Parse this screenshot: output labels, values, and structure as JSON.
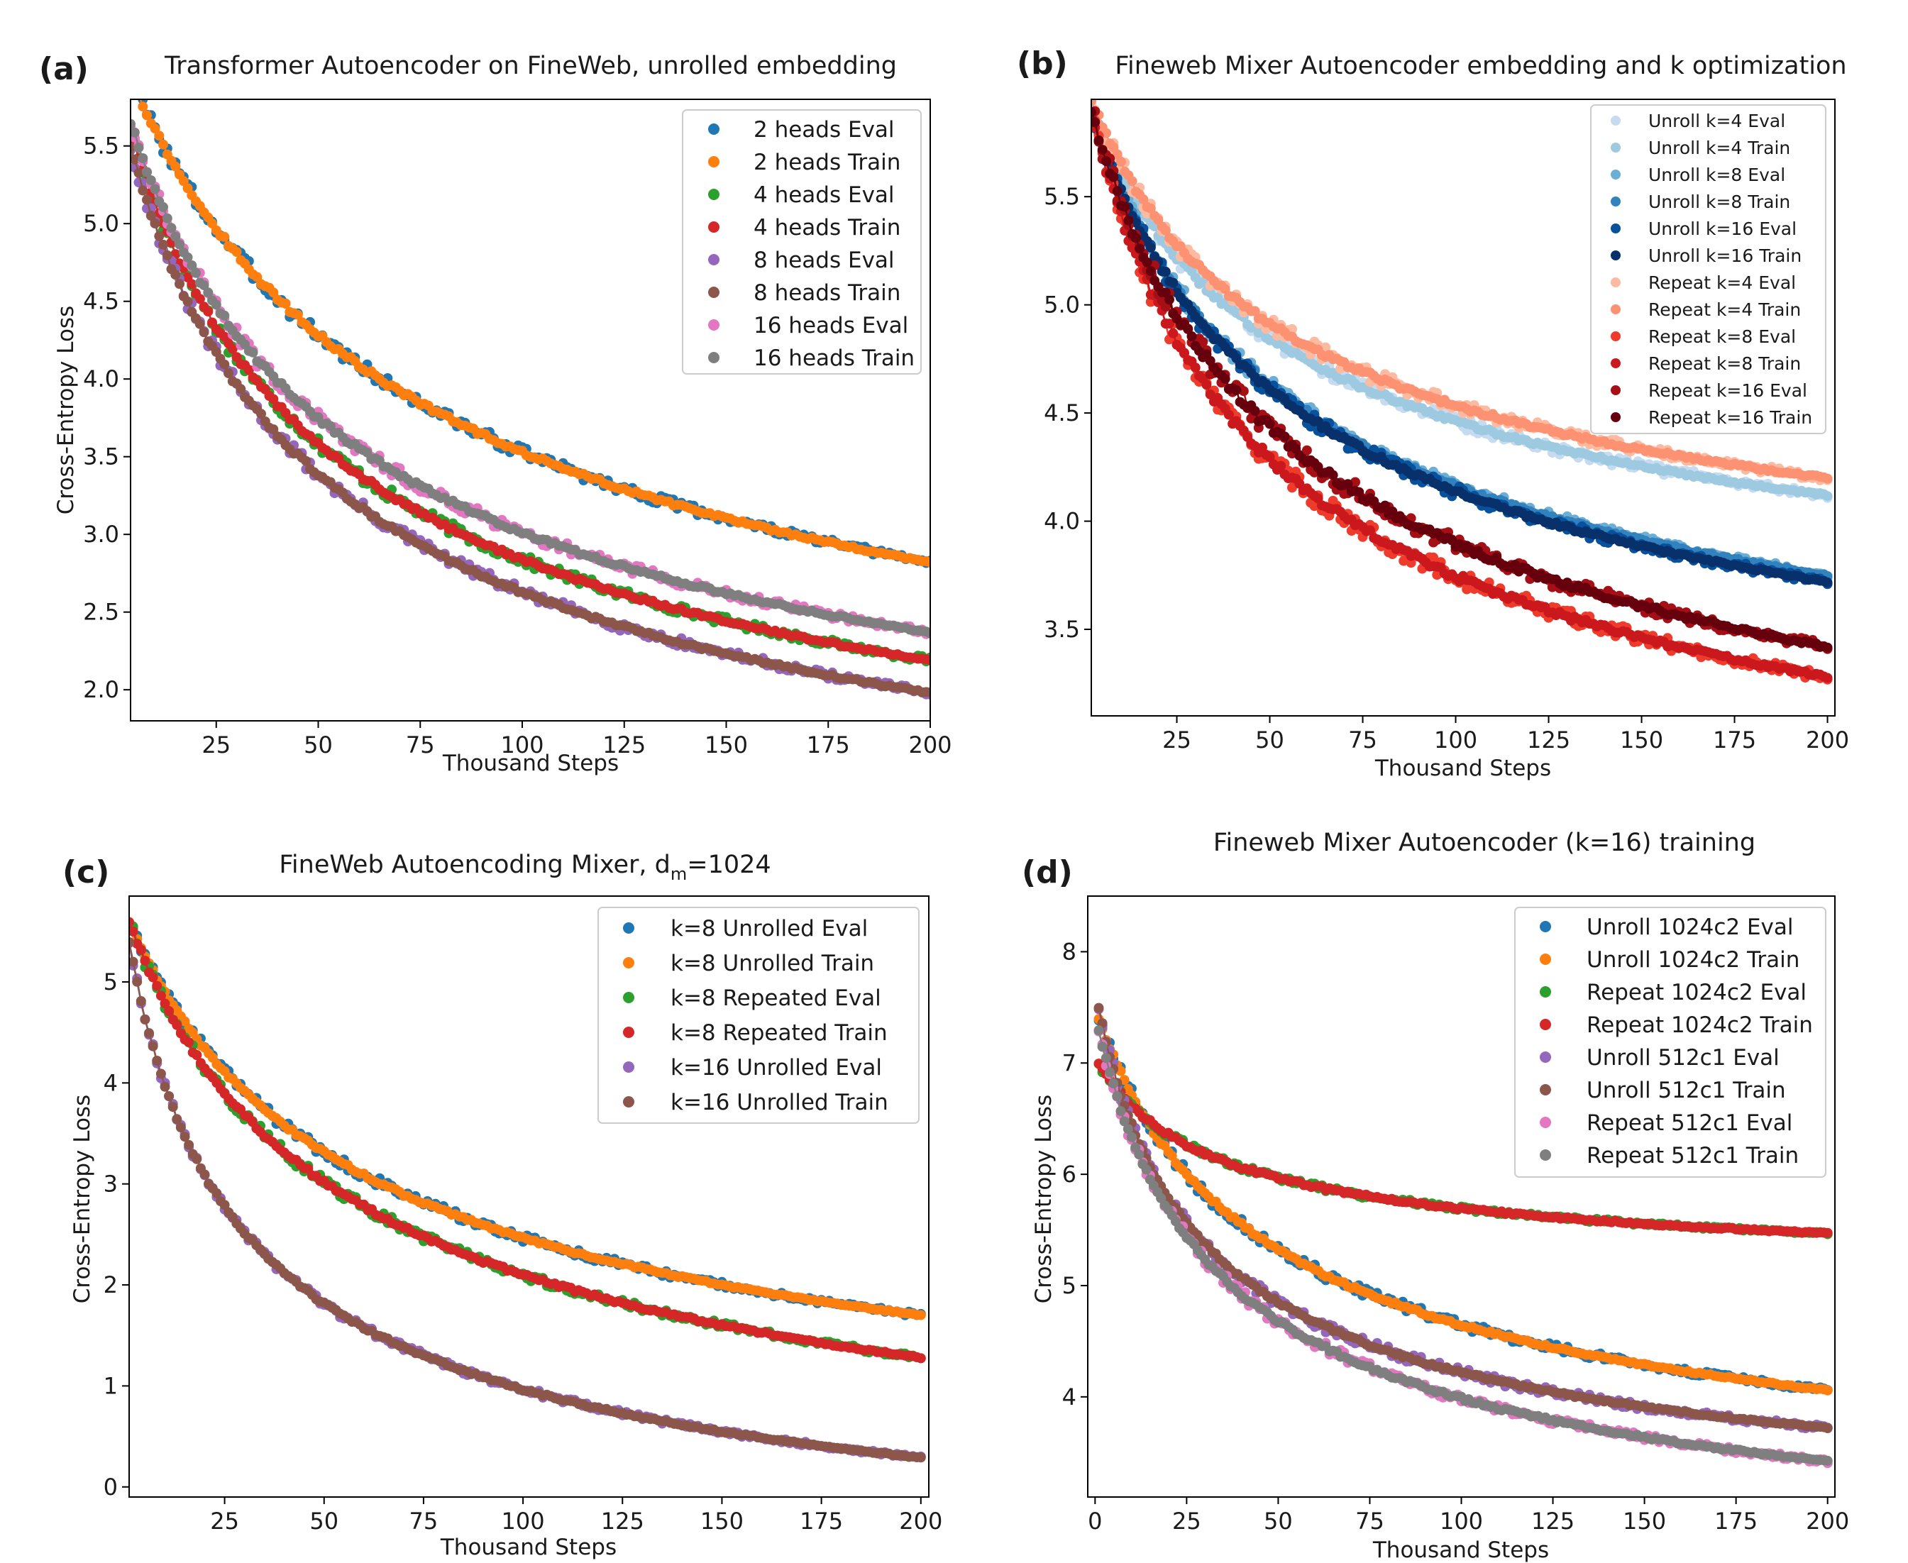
{
  "chart_data": [
    {
      "id": "a",
      "panel_label": "(a)",
      "type": "line",
      "title": "Transformer Autoencoder on FineWeb, unrolled embedding",
      "title_sub": "",
      "title_tail": "",
      "xlabel": "Thousand Steps",
      "ylabel": "Cross-Entropy Loss",
      "xlim": [
        4,
        200
      ],
      "ylim": [
        1.8,
        5.8
      ],
      "xticks": [
        25,
        50,
        75,
        100,
        125,
        150,
        175,
        200
      ],
      "yticks": [
        2.0,
        2.5,
        3.0,
        3.5,
        4.0,
        4.5,
        5.0,
        5.5
      ],
      "ytick_labels": [
        "2.0",
        "2.5",
        "3.0",
        "3.5",
        "4.0",
        "4.5",
        "5.0",
        "5.5"
      ],
      "legend_position": "top-right",
      "series": [
        {
          "name": "2 heads Eval",
          "color": "#1f77b4",
          "start": 5.95,
          "end": 2.82,
          "shape": 0.022,
          "noise": 0.018
        },
        {
          "name": "2 heads Train",
          "color": "#ff7f0e",
          "start": 5.95,
          "end": 2.82,
          "shape": 0.022,
          "noise": 0.006
        },
        {
          "name": "4 heads Eval",
          "color": "#2ca02c",
          "start": 5.6,
          "end": 2.19,
          "shape": 0.032,
          "noise": 0.018
        },
        {
          "name": "4 heads Train",
          "color": "#d62728",
          "start": 5.6,
          "end": 2.19,
          "shape": 0.032,
          "noise": 0.006
        },
        {
          "name": "8 heads Eval",
          "color": "#9467bd",
          "start": 5.5,
          "end": 1.98,
          "shape": 0.034,
          "noise": 0.018
        },
        {
          "name": "8 heads Train",
          "color": "#8c564b",
          "start": 5.5,
          "end": 1.98,
          "shape": 0.034,
          "noise": 0.006
        },
        {
          "name": "16 heads Eval",
          "color": "#e377c2",
          "start": 5.65,
          "end": 2.37,
          "shape": 0.03,
          "noise": 0.018
        },
        {
          "name": "16 heads Train",
          "color": "#7f7f7f",
          "start": 5.65,
          "end": 2.37,
          "shape": 0.03,
          "noise": 0.006
        }
      ]
    },
    {
      "id": "b",
      "panel_label": "(b)",
      "type": "line",
      "title": "Fineweb Mixer Autoencoder embedding and k optimization",
      "title_sub": "",
      "title_tail": "",
      "xlabel": "Thousand Steps",
      "ylabel": "",
      "xlim": [
        2,
        202
      ],
      "ylim": [
        3.1,
        5.95
      ],
      "xticks": [
        25,
        50,
        75,
        100,
        125,
        150,
        175,
        200
      ],
      "yticks": [
        3.5,
        4.0,
        4.5,
        5.0,
        5.5
      ],
      "ytick_labels": [
        "3.5",
        "4.0",
        "4.5",
        "5.0",
        "5.5"
      ],
      "legend_position": "top-right",
      "series": [
        {
          "name": "Unroll k=4 Eval",
          "color": "#c6dbef",
          "start": 5.9,
          "end": 4.12,
          "shape": 0.03,
          "noise": 0.015
        },
        {
          "name": "Unroll k=4 Train",
          "color": "#9ecae1",
          "start": 5.9,
          "end": 4.12,
          "shape": 0.03,
          "noise": 0.005
        },
        {
          "name": "Unroll k=8 Eval",
          "color": "#6baed6",
          "start": 5.9,
          "end": 3.75,
          "shape": 0.03,
          "noise": 0.015
        },
        {
          "name": "Unroll k=8 Train",
          "color": "#3182bd",
          "start": 5.9,
          "end": 3.75,
          "shape": 0.03,
          "noise": 0.005
        },
        {
          "name": "Unroll k=16 Eval",
          "color": "#08519c",
          "start": 5.9,
          "end": 3.72,
          "shape": 0.03,
          "noise": 0.015
        },
        {
          "name": "Unroll k=16 Train",
          "color": "#08306b",
          "start": 5.9,
          "end": 3.72,
          "shape": 0.03,
          "noise": 0.005
        },
        {
          "name": "Repeat k=4 Eval",
          "color": "#fcbba1",
          "start": 5.95,
          "end": 4.2,
          "shape": 0.03,
          "noise": 0.015
        },
        {
          "name": "Repeat k=4 Train",
          "color": "#fc9272",
          "start": 5.95,
          "end": 4.2,
          "shape": 0.03,
          "noise": 0.005
        },
        {
          "name": "Repeat k=8 Eval",
          "color": "#ef3b2c",
          "start": 5.9,
          "end": 3.28,
          "shape": 0.035,
          "noise": 0.02
        },
        {
          "name": "Repeat k=8 Train",
          "color": "#cb181d",
          "start": 5.9,
          "end": 3.28,
          "shape": 0.035,
          "noise": 0.008
        },
        {
          "name": "Repeat k=16 Eval",
          "color": "#a50f15",
          "start": 5.9,
          "end": 3.42,
          "shape": 0.03,
          "noise": 0.02
        },
        {
          "name": "Repeat k=16 Train",
          "color": "#67000d",
          "start": 5.9,
          "end": 3.42,
          "shape": 0.03,
          "noise": 0.008
        }
      ]
    },
    {
      "id": "c",
      "panel_label": "(c)",
      "type": "line",
      "title": "FineWeb Autoencoding Mixer, d",
      "title_sub": "m",
      "title_tail": "=1024",
      "xlabel": "Thousand Steps",
      "ylabel": "Cross-Entropy Loss",
      "xlim": [
        1,
        202
      ],
      "ylim": [
        -0.1,
        5.85
      ],
      "xticks": [
        25,
        50,
        75,
        100,
        125,
        150,
        175,
        200
      ],
      "yticks": [
        0,
        1,
        2,
        3,
        4,
        5
      ],
      "ytick_labels": [
        "0",
        "1",
        "2",
        "3",
        "4",
        "5"
      ],
      "legend_position": "top-right",
      "series": [
        {
          "name": "k=8 Unrolled Eval",
          "color": "#1f77b4",
          "start": 5.6,
          "end": 1.7,
          "shape": 0.028,
          "noise": 0.02
        },
        {
          "name": "k=8 Unrolled Train",
          "color": "#ff7f0e",
          "start": 5.6,
          "end": 1.7,
          "shape": 0.028,
          "noise": 0.006
        },
        {
          "name": "k=8 Repeated Eval",
          "color": "#2ca02c",
          "start": 5.6,
          "end": 1.28,
          "shape": 0.03,
          "noise": 0.02
        },
        {
          "name": "k=8 Repeated Train",
          "color": "#d62728",
          "start": 5.6,
          "end": 1.28,
          "shape": 0.03,
          "noise": 0.008
        },
        {
          "name": "k=16 Unrolled Eval",
          "color": "#9467bd",
          "start": 5.4,
          "end": 0.29,
          "shape": 0.06,
          "noise": 0.015
        },
        {
          "name": "k=16 Unrolled Train",
          "color": "#8c564b",
          "start": 5.4,
          "end": 0.29,
          "shape": 0.06,
          "noise": 0.006
        }
      ]
    },
    {
      "id": "d",
      "panel_label": "(d)",
      "type": "line",
      "title": "Fineweb Mixer Autoencoder (k=16) training",
      "title_sub": "",
      "title_tail": "",
      "xlabel": "Thousand Steps",
      "ylabel": "Cross-Entropy Loss",
      "xlim": [
        -2,
        202
      ],
      "ylim": [
        3.1,
        8.5
      ],
      "xticks": [
        0,
        25,
        50,
        75,
        100,
        125,
        150,
        175,
        200
      ],
      "yticks": [
        4,
        5,
        6,
        7,
        8
      ],
      "ytick_labels": [
        "4",
        "5",
        "6",
        "7",
        "8"
      ],
      "legend_position": "top-right",
      "series": [
        {
          "name": "Unroll 1024c2 Eval",
          "color": "#1f77b4",
          "start": 7.4,
          "end": 4.06,
          "shape": 0.035,
          "noise": 0.02
        },
        {
          "name": "Unroll 1024c2 Train",
          "color": "#ff7f0e",
          "start": 7.4,
          "end": 4.06,
          "shape": 0.035,
          "noise": 0.006
        },
        {
          "name": "Repeat 1024c2 Eval",
          "color": "#2ca02c",
          "start": 7.0,
          "end": 5.47,
          "shape": 0.05,
          "noise": 0.01
        },
        {
          "name": "Repeat 1024c2 Train",
          "color": "#d62728",
          "start": 7.0,
          "end": 5.47,
          "shape": 0.05,
          "noise": 0.006
        },
        {
          "name": "Unroll 512c1 Eval",
          "color": "#9467bd",
          "start": 7.5,
          "end": 3.72,
          "shape": 0.06,
          "noise": 0.02
        },
        {
          "name": "Unroll 512c1 Train",
          "color": "#8c564b",
          "start": 7.5,
          "end": 3.72,
          "shape": 0.06,
          "noise": 0.006
        },
        {
          "name": "Repeat 512c1 Eval",
          "color": "#e377c2",
          "start": 7.3,
          "end": 3.42,
          "shape": 0.05,
          "noise": 0.02
        },
        {
          "name": "Repeat 512c1 Train",
          "color": "#7f7f7f",
          "start": 7.3,
          "end": 3.42,
          "shape": 0.05,
          "noise": 0.008
        }
      ]
    }
  ]
}
